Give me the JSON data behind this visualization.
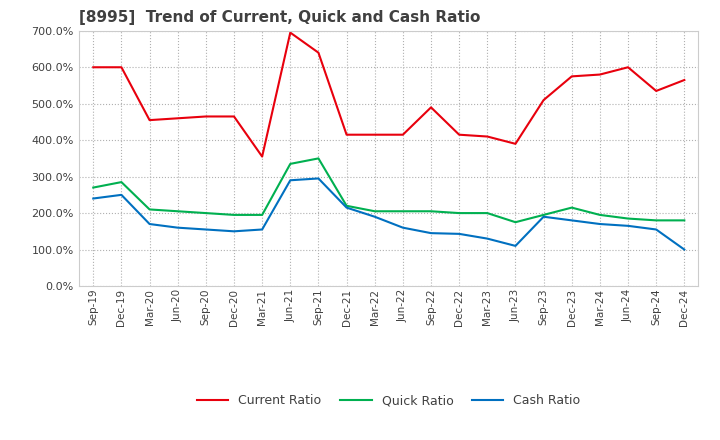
{
  "title": "[8995]  Trend of Current, Quick and Cash Ratio",
  "x_labels": [
    "Sep-19",
    "Dec-19",
    "Mar-20",
    "Jun-20",
    "Sep-20",
    "Dec-20",
    "Mar-21",
    "Jun-21",
    "Sep-21",
    "Dec-21",
    "Mar-22",
    "Jun-22",
    "Sep-22",
    "Dec-22",
    "Mar-23",
    "Jun-23",
    "Sep-23",
    "Dec-23",
    "Mar-24",
    "Jun-24",
    "Sep-24",
    "Dec-24"
  ],
  "current_ratio": [
    600,
    600,
    455,
    460,
    465,
    465,
    355,
    695,
    640,
    415,
    415,
    415,
    490,
    415,
    410,
    390,
    510,
    575,
    580,
    600,
    535,
    565
  ],
  "quick_ratio": [
    270,
    285,
    210,
    205,
    200,
    195,
    195,
    335,
    350,
    220,
    205,
    205,
    205,
    200,
    200,
    175,
    195,
    215,
    195,
    185,
    180,
    180
  ],
  "cash_ratio": [
    240,
    250,
    170,
    160,
    155,
    150,
    155,
    290,
    295,
    215,
    190,
    160,
    145,
    143,
    130,
    110,
    190,
    180,
    170,
    165,
    155,
    100
  ],
  "ylim": [
    0,
    700
  ],
  "yticks": [
    0,
    100,
    200,
    300,
    400,
    500,
    600,
    700
  ],
  "current_color": "#e8000d",
  "quick_color": "#00b050",
  "cash_color": "#0070c0",
  "bg_color": "#ffffff",
  "plot_bg_color": "#ffffff",
  "grid_color": "#b0b0b0",
  "title_color": "#404040",
  "legend_labels": [
    "Current Ratio",
    "Quick Ratio",
    "Cash Ratio"
  ]
}
